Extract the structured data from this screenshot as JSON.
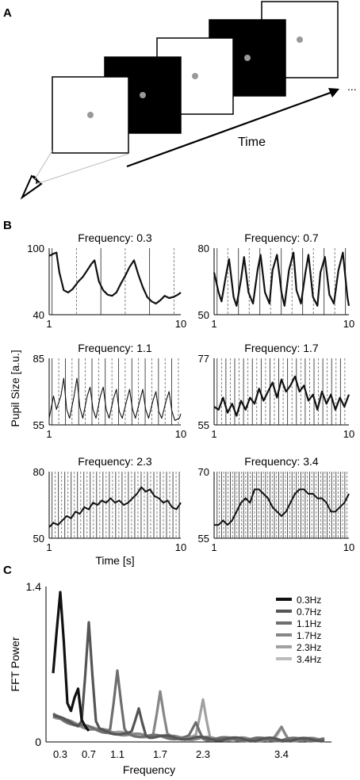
{
  "panels": {
    "a": {
      "label": "A",
      "time_label": "Time",
      "ellipsis": "...",
      "frame_colors": [
        "#ffffff",
        "#000000",
        "#ffffff",
        "#000000",
        "#ffffff"
      ],
      "fixation_color": "#999999"
    },
    "b": {
      "label": "B",
      "ylabel": "Pupil Size [a.u.]",
      "xlabel": "Time [s]"
    },
    "c": {
      "label": "C"
    }
  },
  "chart_data": [
    {
      "type": "line",
      "title": "Frequency: 0.3",
      "freq": 0.3,
      "xlim": [
        1,
        10
      ],
      "ylim": [
        40,
        100
      ],
      "yticks": [
        40,
        100
      ],
      "xticks": [
        1,
        10
      ],
      "x": [
        1.0,
        1.3,
        1.5,
        1.7,
        2.0,
        2.3,
        2.6,
        3.0,
        3.3,
        3.6,
        3.9,
        4.1,
        4.4,
        4.7,
        5.0,
        5.3,
        5.6,
        5.9,
        6.2,
        6.5,
        6.8,
        7.1,
        7.4,
        7.7,
        8.0,
        8.3,
        8.6,
        8.9,
        9.2,
        9.5,
        9.8,
        10.0
      ],
      "y": [
        93,
        95,
        96,
        78,
        62,
        60,
        63,
        70,
        74,
        80,
        86,
        89,
        70,
        62,
        58,
        57,
        60,
        68,
        75,
        83,
        89,
        76,
        65,
        56,
        52,
        50,
        53,
        57,
        55,
        56,
        58,
        60
      ],
      "stroke_width": 2.2
    },
    {
      "type": "line",
      "title": "Frequency: 0.7",
      "freq": 0.7,
      "xlim": [
        1,
        10
      ],
      "ylim": [
        50,
        80
      ],
      "yticks": [
        50,
        80
      ],
      "xticks": [
        1,
        10
      ],
      "x": [
        1.0,
        1.3,
        1.5,
        1.8,
        2.0,
        2.3,
        2.5,
        2.8,
        3.0,
        3.3,
        3.6,
        3.9,
        4.1,
        4.4,
        4.7,
        4.9,
        5.2,
        5.5,
        5.7,
        6.0,
        6.3,
        6.5,
        6.8,
        7.1,
        7.3,
        7.6,
        7.9,
        8.1,
        8.4,
        8.7,
        9.0,
        9.3,
        9.6,
        9.9,
        10.0
      ],
      "y": [
        69,
        60,
        56,
        68,
        75,
        58,
        54,
        66,
        76,
        60,
        55,
        70,
        77,
        60,
        55,
        70,
        77,
        60,
        54,
        70,
        78,
        61,
        55,
        69,
        77,
        58,
        54,
        69,
        76,
        59,
        55,
        70,
        78,
        58,
        54
      ],
      "stroke_width": 2.2
    },
    {
      "type": "line",
      "title": "Frequency: 1.1",
      "freq": 1.1,
      "xlim": [
        1,
        10
      ],
      "ylim": [
        55,
        85
      ],
      "yticks": [
        55,
        85
      ],
      "xticks": [
        1,
        10
      ],
      "x": [
        1.0,
        1.3,
        1.5,
        1.8,
        2.0,
        2.2,
        2.4,
        2.7,
        2.9,
        3.1,
        3.3,
        3.6,
        3.8,
        4.0,
        4.2,
        4.5,
        4.7,
        4.9,
        5.1,
        5.4,
        5.6,
        5.8,
        6.0,
        6.3,
        6.5,
        6.7,
        6.9,
        7.2,
        7.4,
        7.6,
        7.8,
        8.1,
        8.3,
        8.5,
        8.7,
        9.0,
        9.2,
        9.4,
        9.6,
        9.9,
        10.0
      ],
      "y": [
        58,
        68,
        62,
        68,
        76,
        62,
        58,
        68,
        76,
        63,
        58,
        68,
        72,
        62,
        58,
        68,
        72,
        62,
        58,
        67,
        71,
        61,
        58,
        66,
        71,
        62,
        58,
        66,
        71,
        62,
        58,
        66,
        70,
        61,
        58,
        66,
        70,
        61,
        57,
        58,
        60
      ],
      "stroke_width": 1.1
    },
    {
      "type": "line",
      "title": "Frequency: 1.7",
      "freq": 1.7,
      "xlim": [
        1,
        10
      ],
      "ylim": [
        55,
        77
      ],
      "yticks": [
        55,
        77
      ],
      "xticks": [
        1,
        10
      ],
      "x": [
        1.0,
        1.3,
        1.6,
        1.9,
        2.2,
        2.5,
        2.8,
        3.1,
        3.4,
        3.7,
        4.0,
        4.3,
        4.6,
        4.9,
        5.2,
        5.5,
        5.8,
        6.1,
        6.4,
        6.7,
        7.0,
        7.3,
        7.6,
        7.9,
        8.2,
        8.5,
        8.8,
        9.1,
        9.4,
        9.7,
        10.0
      ],
      "y": [
        61,
        60,
        64,
        59,
        62,
        58,
        63,
        60,
        64,
        62,
        67,
        63,
        66,
        69,
        64,
        70,
        66,
        68,
        71,
        66,
        68,
        63,
        65,
        60,
        66,
        62,
        65,
        60,
        64,
        61,
        65
      ],
      "stroke_width": 2.2
    },
    {
      "type": "line",
      "title": "Frequency: 2.3",
      "freq": 2.3,
      "xlim": [
        1,
        10
      ],
      "ylim": [
        50,
        80
      ],
      "yticks": [
        50,
        80
      ],
      "xticks": [
        1,
        10
      ],
      "x": [
        1.0,
        1.3,
        1.6,
        1.9,
        2.2,
        2.5,
        2.8,
        3.1,
        3.4,
        3.7,
        4.0,
        4.3,
        4.6,
        4.9,
        5.2,
        5.5,
        5.8,
        6.1,
        6.4,
        6.7,
        7.0,
        7.3,
        7.6,
        7.9,
        8.2,
        8.5,
        8.8,
        9.1,
        9.4,
        9.7,
        10.0
      ],
      "y": [
        55,
        57,
        56,
        58,
        60,
        59,
        62,
        61,
        64,
        63,
        66,
        65,
        67,
        66,
        68,
        66,
        67,
        65,
        66,
        68,
        70,
        73,
        71,
        72,
        69,
        68,
        66,
        67,
        64,
        63,
        66
      ],
      "stroke_width": 2.0
    },
    {
      "type": "line",
      "title": "Frequency: 3.4",
      "freq": 3.4,
      "xlim": [
        1,
        10
      ],
      "ylim": [
        55,
        70
      ],
      "yticks": [
        55,
        70
      ],
      "xticks": [
        1,
        10
      ],
      "x": [
        1.0,
        1.3,
        1.6,
        1.9,
        2.2,
        2.5,
        2.8,
        3.1,
        3.4,
        3.7,
        4.0,
        4.3,
        4.6,
        4.9,
        5.2,
        5.5,
        5.8,
        6.1,
        6.4,
        6.7,
        7.0,
        7.3,
        7.6,
        7.9,
        8.2,
        8.5,
        8.8,
        9.1,
        9.4,
        9.7,
        10.0
      ],
      "y": [
        58,
        58,
        59,
        58,
        59,
        61,
        63,
        64,
        63,
        66,
        66,
        65,
        64,
        62,
        61,
        60,
        61,
        63,
        65,
        66,
        66,
        65,
        65,
        64,
        64,
        63,
        61,
        61,
        62,
        63,
        65
      ],
      "stroke_width": 2.0
    },
    {
      "type": "line",
      "xlabel": "Frequency",
      "ylabel": "FFT Power",
      "ylim": [
        0,
        1.4
      ],
      "xlim": [
        0.3,
        3.4
      ],
      "yticks": [
        "0",
        "1.4"
      ],
      "xticks": [
        "0.3",
        "0.7",
        "1.1",
        "1.7",
        "2.3",
        "3.4"
      ],
      "xtick_values": [
        0.3,
        0.7,
        1.1,
        1.7,
        2.3,
        3.4
      ],
      "series": [
        {
          "name": "0.3Hz",
          "color": "#111111",
          "peak": 0.3,
          "amp": 1.35,
          "x": [
            0.2,
            0.25,
            0.3,
            0.35,
            0.4,
            0.45,
            0.5,
            0.55,
            0.6,
            0.65,
            0.7
          ],
          "y": [
            0.62,
            1.0,
            1.35,
            0.9,
            0.35,
            0.28,
            0.4,
            0.48,
            0.2,
            0.14,
            0.1
          ]
        },
        {
          "name": "0.7Hz",
          "color": "#555555",
          "peak": 0.7,
          "amp": 0.95
        },
        {
          "name": "1.1Hz",
          "color": "#6e6e6e",
          "peak": 1.1,
          "amp": 0.55
        },
        {
          "name": "1.7Hz",
          "color": "#868686",
          "peak": 1.7,
          "amp": 0.42
        },
        {
          "name": "2.3Hz",
          "color": "#a1a1a1",
          "peak": 2.3,
          "amp": 0.36
        },
        {
          "name": "3.4Hz",
          "color": "#bcbcbc",
          "peak": 3.4,
          "amp": 0.12
        }
      ]
    }
  ]
}
